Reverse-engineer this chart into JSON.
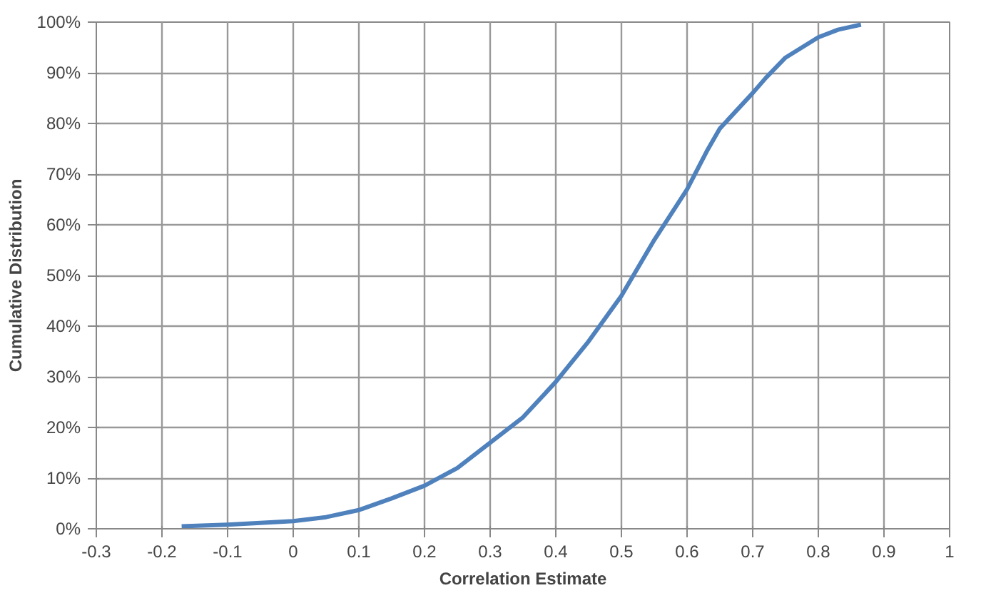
{
  "chart_data": {
    "type": "line",
    "xlabel": "Correlation Estimate",
    "ylabel": "Cumulative Distribution",
    "x": [
      -0.17,
      -0.1,
      0,
      0.05,
      0.1,
      0.15,
      0.2,
      0.25,
      0.3,
      0.35,
      0.4,
      0.45,
      0.5,
      0.55,
      0.6,
      0.63,
      0.65,
      0.7,
      0.72,
      0.75,
      0.8,
      0.83,
      0.865
    ],
    "series": [
      {
        "color": "#4f81bd",
        "values": [
          0.5,
          0.8,
          1.5,
          2.3,
          3.7,
          6,
          8.5,
          12,
          17,
          22,
          29,
          37,
          46,
          57,
          67,
          74.5,
          79,
          86,
          89,
          93,
          97,
          98.5,
          99.5
        ]
      }
    ],
    "xlim": [
      -0.3,
      1
    ],
    "xticks": [
      -0.3,
      -0.2,
      -0.1,
      0,
      0.1,
      0.2,
      0.3,
      0.4,
      0.5,
      0.6,
      0.7,
      0.8,
      0.9,
      1
    ],
    "ylim": [
      0,
      100
    ],
    "yticks": [
      {
        "value": 0,
        "label": "0%"
      },
      {
        "value": 10,
        "label": "10%"
      },
      {
        "value": 20,
        "label": "20%"
      },
      {
        "value": 30,
        "label": "30%"
      },
      {
        "value": 40,
        "label": "40%"
      },
      {
        "value": 50,
        "label": "50%"
      },
      {
        "value": 60,
        "label": "60%"
      },
      {
        "value": 70,
        "label": "70%"
      },
      {
        "value": 80,
        "label": "80%"
      },
      {
        "value": 90,
        "label": "90%"
      },
      {
        "value": 100,
        "label": "100%"
      }
    ],
    "grid": true,
    "line_style": "solid"
  }
}
